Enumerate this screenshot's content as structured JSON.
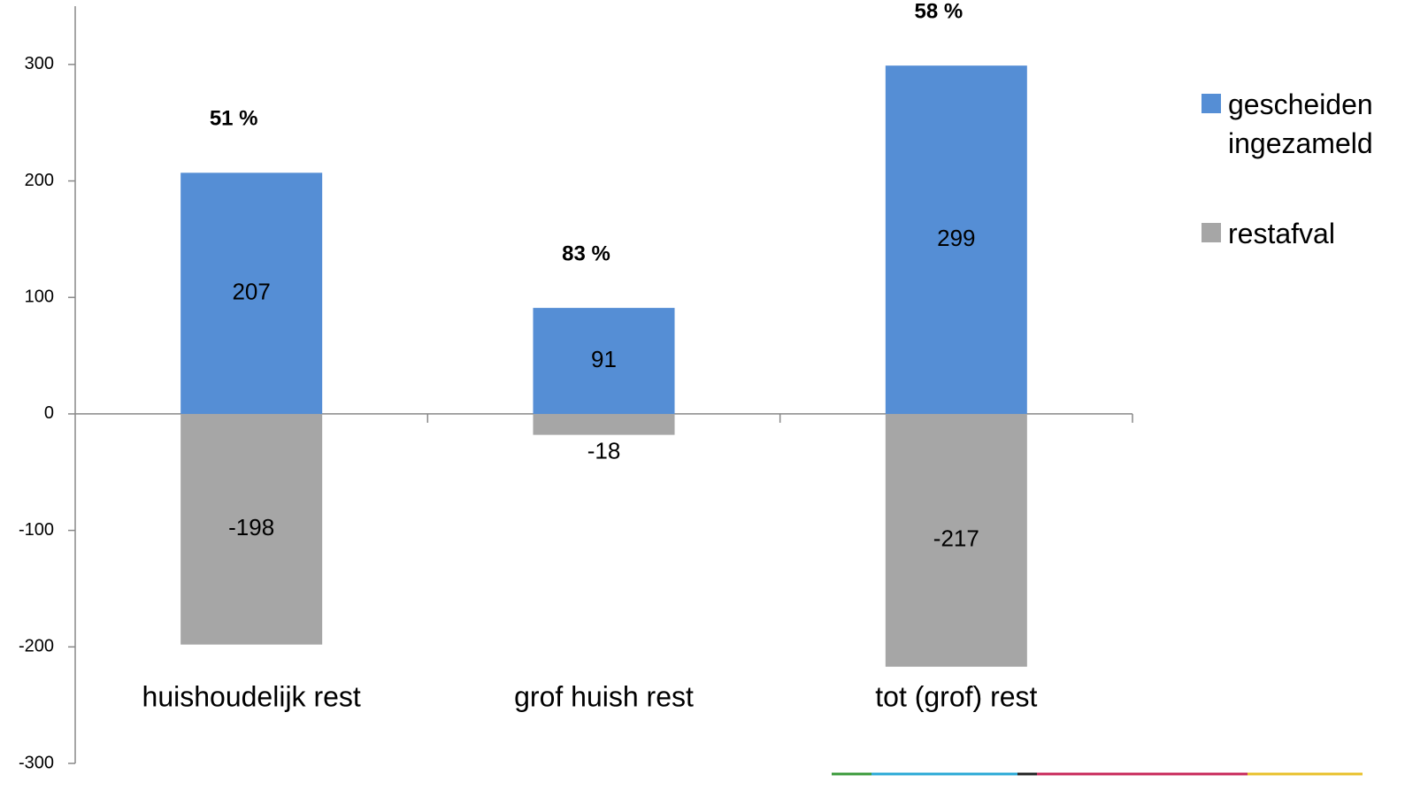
{
  "chart_data": {
    "type": "bar",
    "stacked": true,
    "categories": [
      "huishoudelijk rest",
      "grof huish rest",
      "tot (grof) rest"
    ],
    "series": [
      {
        "name": "restafval",
        "color": "#a6a6a6",
        "values": [
          -198,
          -18,
          -217
        ]
      },
      {
        "name": "gescheiden ingezameld",
        "color": "#558ed5",
        "values": [
          207,
          91,
          299
        ]
      }
    ],
    "annotations": [
      "51 %",
      "83 %",
      "58 %"
    ],
    "ylim": [
      -300,
      350
    ],
    "yticks": [
      -300,
      -200,
      -100,
      0,
      100,
      200,
      300
    ],
    "grid": false,
    "legend": "right"
  }
}
